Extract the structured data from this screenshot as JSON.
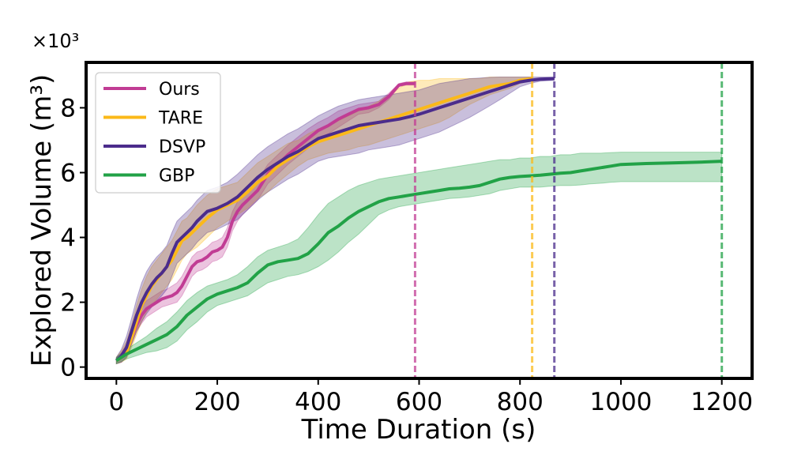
{
  "chart_data": {
    "type": "line",
    "title": "",
    "xlabel": "Time Duration (s)",
    "ylabel": "Explored Volume (m³)",
    "y_multiplier_label": "×10³",
    "xlim": [
      -60,
      1260
    ],
    "ylim": [
      -0.35,
      9.4
    ],
    "x_ticks": [
      0,
      200,
      400,
      600,
      800,
      1000,
      1200
    ],
    "y_ticks": [
      0,
      2,
      4,
      6,
      8
    ],
    "grid": false,
    "legend_position": "top-left",
    "series": [
      {
        "name": "Ours",
        "color": "#c13c94",
        "end_time": 592,
        "x": [
          0,
          10,
          20,
          30,
          40,
          50,
          60,
          70,
          80,
          90,
          100,
          110,
          120,
          130,
          140,
          150,
          160,
          170,
          180,
          190,
          200,
          210,
          220,
          230,
          240,
          250,
          260,
          270,
          280,
          290,
          300,
          320,
          340,
          360,
          380,
          400,
          420,
          440,
          460,
          480,
          500,
          520,
          540,
          560,
          575,
          592
        ],
        "y": [
          0.2,
          0.3,
          0.5,
          0.9,
          1.3,
          1.6,
          1.8,
          1.9,
          2.0,
          2.1,
          2.15,
          2.2,
          2.3,
          2.5,
          2.8,
          3.1,
          3.25,
          3.3,
          3.4,
          3.55,
          3.6,
          3.7,
          4.0,
          4.5,
          4.8,
          5.0,
          5.15,
          5.3,
          5.45,
          5.7,
          5.95,
          6.25,
          6.55,
          6.8,
          7.05,
          7.3,
          7.45,
          7.65,
          7.8,
          7.95,
          8.0,
          8.1,
          8.35,
          8.7,
          8.75,
          8.75
        ],
        "upper": [
          0.3,
          0.45,
          0.7,
          1.1,
          1.5,
          1.85,
          2.05,
          2.15,
          2.25,
          2.35,
          2.4,
          2.5,
          2.6,
          2.8,
          3.1,
          3.4,
          3.55,
          3.6,
          3.7,
          3.85,
          3.9,
          4.0,
          4.3,
          4.8,
          5.1,
          5.3,
          5.45,
          5.6,
          5.75,
          6.0,
          6.25,
          6.55,
          6.85,
          7.1,
          7.35,
          7.55,
          7.7,
          7.9,
          8.0,
          8.1,
          8.15,
          8.2,
          8.45,
          8.75,
          8.8,
          8.8
        ],
        "lower": [
          0.1,
          0.15,
          0.3,
          0.7,
          1.1,
          1.35,
          1.55,
          1.65,
          1.75,
          1.85,
          1.9,
          1.95,
          2.0,
          2.2,
          2.5,
          2.8,
          2.95,
          3.0,
          3.1,
          3.25,
          3.3,
          3.4,
          3.7,
          4.2,
          4.5,
          4.7,
          4.85,
          5.0,
          5.15,
          5.4,
          5.65,
          5.95,
          6.25,
          6.5,
          6.75,
          7.05,
          7.2,
          7.4,
          7.6,
          7.8,
          7.85,
          8.0,
          8.25,
          8.65,
          8.7,
          8.7
        ]
      },
      {
        "name": "TARE",
        "color": "#fbb919",
        "end_time": 824,
        "x": [
          0,
          10,
          20,
          30,
          40,
          50,
          60,
          70,
          80,
          90,
          100,
          110,
          120,
          130,
          140,
          150,
          160,
          180,
          200,
          220,
          240,
          260,
          280,
          300,
          320,
          340,
          360,
          380,
          400,
          420,
          440,
          460,
          480,
          500,
          520,
          540,
          560,
          580,
          600,
          620,
          640,
          660,
          680,
          700,
          720,
          740,
          760,
          780,
          800,
          824
        ],
        "y": [
          0.2,
          0.3,
          0.45,
          0.9,
          1.4,
          1.9,
          2.2,
          2.5,
          2.7,
          2.9,
          3.1,
          3.3,
          3.6,
          3.9,
          4.0,
          4.15,
          4.3,
          4.6,
          4.85,
          5.0,
          5.15,
          5.4,
          5.7,
          5.9,
          6.2,
          6.4,
          6.6,
          6.8,
          6.95,
          7.05,
          7.15,
          7.25,
          7.35,
          7.45,
          7.55,
          7.65,
          7.75,
          7.85,
          7.95,
          8.05,
          8.15,
          8.25,
          8.35,
          8.45,
          8.55,
          8.65,
          8.7,
          8.75,
          8.85,
          8.9
        ],
        "upper": [
          0.3,
          0.5,
          0.8,
          1.3,
          1.9,
          2.4,
          2.8,
          3.1,
          3.3,
          3.5,
          3.7,
          3.9,
          4.2,
          4.5,
          4.6,
          4.8,
          5.0,
          5.3,
          5.5,
          5.6,
          5.7,
          6.0,
          6.3,
          6.5,
          6.7,
          6.9,
          7.0,
          7.2,
          7.35,
          7.45,
          7.6,
          7.75,
          7.9,
          8.05,
          8.2,
          8.4,
          8.6,
          8.8,
          8.85,
          8.85,
          8.9,
          8.9,
          8.9,
          8.9,
          8.9,
          8.95,
          8.95,
          8.95,
          8.95,
          8.95
        ],
        "lower": [
          0.1,
          0.15,
          0.25,
          0.6,
          1.0,
          1.4,
          1.7,
          1.9,
          2.1,
          2.3,
          2.5,
          2.7,
          3.0,
          3.3,
          3.5,
          3.6,
          3.7,
          4.0,
          4.3,
          4.5,
          4.7,
          4.9,
          5.2,
          5.4,
          5.7,
          5.95,
          6.2,
          6.4,
          6.5,
          6.6,
          6.65,
          6.7,
          6.8,
          6.85,
          6.95,
          7.05,
          7.15,
          7.25,
          7.35,
          7.45,
          7.55,
          7.7,
          7.9,
          8.1,
          8.25,
          8.4,
          8.5,
          8.6,
          8.75,
          8.85
        ]
      },
      {
        "name": "DSVP",
        "color": "#4b2c8c",
        "end_time": 868,
        "x": [
          0,
          10,
          20,
          30,
          40,
          50,
          60,
          70,
          80,
          90,
          100,
          110,
          120,
          130,
          140,
          150,
          160,
          180,
          200,
          220,
          240,
          260,
          280,
          300,
          320,
          340,
          360,
          380,
          400,
          420,
          440,
          460,
          480,
          500,
          520,
          540,
          560,
          580,
          600,
          620,
          640,
          660,
          680,
          700,
          720,
          740,
          760,
          780,
          800,
          820,
          840,
          868
        ],
        "y": [
          0.2,
          0.35,
          0.6,
          1.1,
          1.6,
          2.0,
          2.3,
          2.55,
          2.75,
          2.9,
          3.1,
          3.5,
          3.85,
          4.0,
          4.15,
          4.3,
          4.5,
          4.8,
          4.9,
          5.05,
          5.25,
          5.55,
          5.85,
          6.1,
          6.3,
          6.5,
          6.65,
          6.85,
          7.05,
          7.15,
          7.25,
          7.35,
          7.45,
          7.5,
          7.55,
          7.6,
          7.65,
          7.72,
          7.8,
          7.9,
          8.0,
          8.1,
          8.2,
          8.3,
          8.4,
          8.5,
          8.6,
          8.7,
          8.8,
          8.85,
          8.88,
          8.9
        ],
        "upper": [
          0.3,
          0.55,
          0.95,
          1.5,
          2.1,
          2.6,
          2.95,
          3.2,
          3.4,
          3.55,
          3.75,
          4.15,
          4.5,
          4.65,
          4.8,
          4.95,
          5.15,
          5.45,
          5.55,
          5.7,
          5.95,
          6.25,
          6.55,
          6.8,
          7.0,
          7.2,
          7.35,
          7.55,
          7.75,
          7.9,
          8.05,
          8.15,
          8.25,
          8.3,
          8.35,
          8.4,
          8.45,
          8.5,
          8.55,
          8.65,
          8.75,
          8.8,
          8.85,
          8.9,
          8.92,
          8.94,
          8.95,
          8.95,
          8.95,
          8.95,
          8.95,
          8.95
        ],
        "lower": [
          0.1,
          0.15,
          0.3,
          0.7,
          1.1,
          1.4,
          1.65,
          1.85,
          2.05,
          2.2,
          2.4,
          2.8,
          3.2,
          3.35,
          3.5,
          3.65,
          3.85,
          4.15,
          4.25,
          4.4,
          4.55,
          4.85,
          5.15,
          5.4,
          5.6,
          5.8,
          5.95,
          6.15,
          6.35,
          6.45,
          6.5,
          6.55,
          6.6,
          6.7,
          6.75,
          6.8,
          6.85,
          6.95,
          7.05,
          7.15,
          7.25,
          7.4,
          7.55,
          7.7,
          7.88,
          8.06,
          8.25,
          8.45,
          8.65,
          8.75,
          8.82,
          8.85
        ]
      },
      {
        "name": "GBP",
        "color": "#22a247",
        "end_time": 1200,
        "x": [
          0,
          20,
          40,
          60,
          80,
          100,
          120,
          140,
          160,
          180,
          200,
          220,
          240,
          260,
          280,
          300,
          320,
          340,
          360,
          380,
          400,
          420,
          440,
          460,
          480,
          500,
          520,
          540,
          560,
          580,
          600,
          620,
          640,
          660,
          680,
          700,
          720,
          740,
          760,
          780,
          800,
          820,
          840,
          860,
          880,
          900,
          920,
          940,
          960,
          980,
          1000,
          1050,
          1100,
          1150,
          1200
        ],
        "y": [
          0.2,
          0.4,
          0.55,
          0.7,
          0.85,
          1.0,
          1.25,
          1.6,
          1.85,
          2.1,
          2.25,
          2.35,
          2.45,
          2.6,
          2.9,
          3.15,
          3.25,
          3.3,
          3.35,
          3.5,
          3.8,
          4.15,
          4.35,
          4.6,
          4.8,
          4.95,
          5.1,
          5.2,
          5.25,
          5.3,
          5.35,
          5.4,
          5.45,
          5.5,
          5.52,
          5.55,
          5.6,
          5.7,
          5.8,
          5.85,
          5.88,
          5.9,
          5.92,
          5.95,
          5.98,
          6.0,
          6.05,
          6.1,
          6.15,
          6.2,
          6.25,
          6.28,
          6.3,
          6.32,
          6.35
        ],
        "upper": [
          0.3,
          0.55,
          0.75,
          0.95,
          1.2,
          1.4,
          1.7,
          2.05,
          2.3,
          2.5,
          2.6,
          2.7,
          2.85,
          3.1,
          3.4,
          3.6,
          3.7,
          3.8,
          3.95,
          4.3,
          4.7,
          5.05,
          5.25,
          5.45,
          5.6,
          5.7,
          5.8,
          5.85,
          5.9,
          5.95,
          6.0,
          6.05,
          6.1,
          6.15,
          6.2,
          6.25,
          6.3,
          6.35,
          6.4,
          6.4,
          6.45,
          6.45,
          6.5,
          6.5,
          6.55,
          6.55,
          6.6,
          6.6,
          6.6,
          6.62,
          6.63,
          6.63,
          6.63,
          6.63,
          6.63
        ],
        "lower": [
          0.1,
          0.25,
          0.35,
          0.45,
          0.5,
          0.6,
          0.8,
          1.15,
          1.4,
          1.7,
          1.9,
          2.0,
          2.1,
          2.2,
          2.4,
          2.6,
          2.7,
          2.8,
          2.85,
          2.95,
          3.1,
          3.3,
          3.55,
          3.85,
          4.1,
          4.4,
          4.7,
          4.85,
          4.95,
          5.0,
          5.05,
          5.1,
          5.15,
          5.2,
          5.22,
          5.25,
          5.3,
          5.35,
          5.45,
          5.5,
          5.55,
          5.55,
          5.55,
          5.58,
          5.6,
          5.6,
          5.62,
          5.65,
          5.67,
          5.7,
          5.72,
          5.72,
          5.72,
          5.72,
          5.72
        ]
      }
    ]
  }
}
